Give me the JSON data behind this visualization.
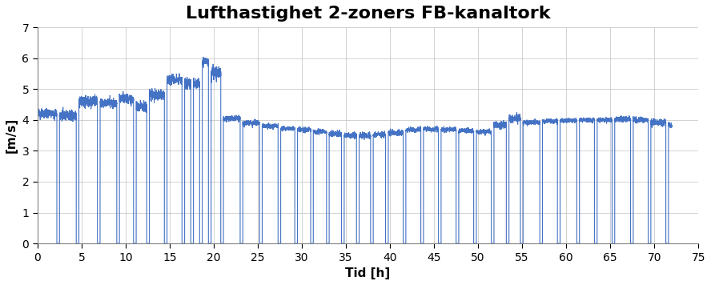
{
  "title": "Lufthastighet 2-zoners FB-kanaltork",
  "xlabel": "Tid [h]",
  "ylabel": "[m/s]",
  "xlim": [
    0,
    75
  ],
  "ylim": [
    0,
    7
  ],
  "yticks": [
    0,
    1,
    2,
    3,
    4,
    5,
    6,
    7
  ],
  "xticks": [
    0,
    5,
    10,
    15,
    20,
    25,
    30,
    35,
    40,
    45,
    50,
    55,
    60,
    65,
    70,
    75
  ],
  "line_color": "#4472C4",
  "bg_color": "#FFFFFF",
  "grid_color": "#C0C0C0",
  "title_fontsize": 16,
  "label_fontsize": 11,
  "tick_fontsize": 10,
  "figsize": [
    8.88,
    3.56
  ],
  "dpi": 100
}
